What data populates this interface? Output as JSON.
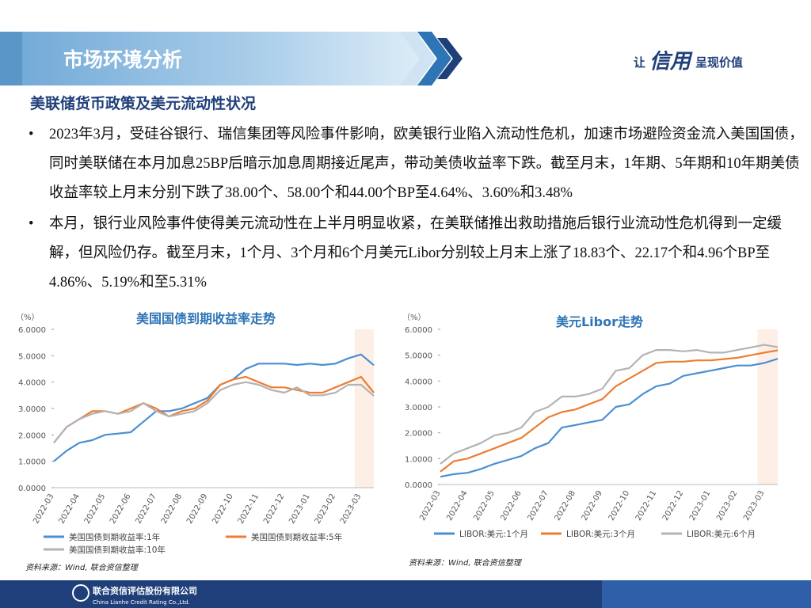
{
  "header": {
    "title": "市场环境分析",
    "slogan_pre": "让",
    "slogan_mark": "信用",
    "slogan_post": "呈现价值"
  },
  "section": {
    "heading": "美联储货币政策及美元流动性状况"
  },
  "bullets": [
    "2023年3月，受硅谷银行、瑞信集团等风险事件影响，欧美银行业陷入流动性危机，加速市场避险资金流入美国国债，同时美联储在本月加息25BP后暗示加息周期接近尾声，带动美债收益率下跌。截至月末，1年期、5年期和10年期美债收益率较上月末分别下跌了38.00个、58.00个和44.00个BP至4.64%、3.60%和3.48%",
    "本月，银行业风险事件使得美元流动性在上半月明显收紧，在美联储推出救助措施后银行业流动性危机得到一定缓解，但风险仍存。截至月末，1个月、3个月和6个月美元Libor分别较上月末上涨了18.83个、22.17个和4.96个BP至4.86%、5.19%和至5.31%"
  ],
  "chart_data": [
    {
      "type": "line",
      "title": "美国国债到期收益率走势",
      "y_label": "（%）",
      "source": "资料来源：Wind, 联合资信整理",
      "categories": [
        "2022-03",
        null,
        "2022-04",
        null,
        "2022-05",
        null,
        "2022-06",
        null,
        "2022-07",
        null,
        "2022-08",
        null,
        "2022-09",
        null,
        "2022-10",
        null,
        "2022-11",
        null,
        "2022-12",
        null,
        "2023-01",
        null,
        "2023-02",
        null,
        "2023-03",
        null
      ],
      "ylim": [
        0,
        6
      ],
      "yticks": [
        {
          "value": 0,
          "label": "0.0000"
        },
        {
          "value": 1,
          "label": "1.0000"
        },
        {
          "value": 2,
          "label": "2.0000"
        },
        {
          "value": 3,
          "label": "3.0000"
        },
        {
          "value": 4,
          "label": "4.0000"
        },
        {
          "value": 5,
          "label": "5.0000"
        },
        {
          "value": 6,
          "label": "6.0000"
        }
      ],
      "series": [
        {
          "name": "美国国债到期收益率:1年",
          "color": "#4a8fd4",
          "values": [
            1.0,
            1.4,
            1.7,
            1.8,
            2.0,
            2.05,
            2.1,
            2.5,
            2.9,
            2.9,
            3.0,
            3.2,
            3.4,
            3.9,
            4.1,
            4.5,
            4.7,
            4.7,
            4.7,
            4.65,
            4.7,
            4.65,
            4.7,
            4.9,
            5.05,
            4.64
          ]
        },
        {
          "name": "美国国债到期收益率:5年",
          "color": "#ee7d31",
          "values": [
            1.7,
            2.3,
            2.6,
            2.9,
            2.9,
            2.8,
            3.0,
            3.2,
            3.0,
            2.7,
            2.9,
            3.0,
            3.3,
            3.9,
            4.1,
            4.2,
            4.0,
            3.8,
            3.8,
            3.7,
            3.6,
            3.6,
            3.8,
            4.0,
            4.2,
            3.6
          ]
        },
        {
          "name": "美国国债到期收益率:10年",
          "color": "#b3b3b3",
          "values": [
            1.7,
            2.3,
            2.6,
            2.8,
            2.9,
            2.8,
            2.9,
            3.2,
            2.9,
            2.7,
            2.8,
            2.9,
            3.2,
            3.7,
            3.9,
            4.0,
            3.9,
            3.7,
            3.6,
            3.8,
            3.5,
            3.5,
            3.6,
            3.9,
            3.9,
            3.48
          ]
        }
      ]
    },
    {
      "type": "line",
      "title": "美元Libor走势",
      "y_label": "（%）",
      "source": "资料来源：Wind, 联合资信整理",
      "categories": [
        "2022-03",
        null,
        "2022-04",
        null,
        "2022-05",
        null,
        "2022-06",
        null,
        "2022-07",
        null,
        "2022-08",
        null,
        "2022-09",
        null,
        "2022-10",
        null,
        "2022-11",
        null,
        "2022-12",
        null,
        "2023-01",
        null,
        "2023-02",
        null,
        "2023-03",
        null
      ],
      "ylim": [
        0,
        6
      ],
      "yticks": [
        {
          "value": 0,
          "label": "0.0000"
        },
        {
          "value": 1,
          "label": "1.0000"
        },
        {
          "value": 2,
          "label": "2.0000"
        },
        {
          "value": 3,
          "label": "3.0000"
        },
        {
          "value": 4,
          "label": "4.0000"
        },
        {
          "value": 5,
          "label": "5.0000"
        },
        {
          "value": 6,
          "label": "6.0000"
        }
      ],
      "series": [
        {
          "name": "LIBOR:美元:1个月",
          "color": "#4a8fd4",
          "values": [
            0.3,
            0.4,
            0.45,
            0.6,
            0.8,
            0.95,
            1.1,
            1.4,
            1.6,
            2.2,
            2.3,
            2.4,
            2.5,
            3.0,
            3.1,
            3.5,
            3.8,
            3.9,
            4.2,
            4.3,
            4.4,
            4.5,
            4.6,
            4.6,
            4.7,
            4.86
          ]
        },
        {
          "name": "LIBOR:美元:3个月",
          "color": "#ee7d31",
          "values": [
            0.5,
            0.9,
            1.0,
            1.2,
            1.4,
            1.6,
            1.8,
            2.2,
            2.6,
            2.8,
            2.9,
            3.1,
            3.3,
            3.8,
            4.1,
            4.4,
            4.7,
            4.75,
            4.75,
            4.8,
            4.8,
            4.85,
            4.9,
            5.0,
            5.1,
            5.19
          ]
        },
        {
          "name": "LIBOR:美元:6个月",
          "color": "#b3b3b3",
          "values": [
            0.8,
            1.2,
            1.4,
            1.6,
            1.9,
            2.0,
            2.2,
            2.8,
            3.0,
            3.4,
            3.4,
            3.5,
            3.7,
            4.4,
            4.5,
            5.0,
            5.2,
            5.2,
            5.15,
            5.2,
            5.1,
            5.1,
            5.2,
            5.3,
            5.4,
            5.31
          ]
        }
      ]
    }
  ],
  "footer": {
    "company": "联合资信评估股份有限公司",
    "company_en": "China Lianhe Credit Rating Co.,Ltd."
  }
}
